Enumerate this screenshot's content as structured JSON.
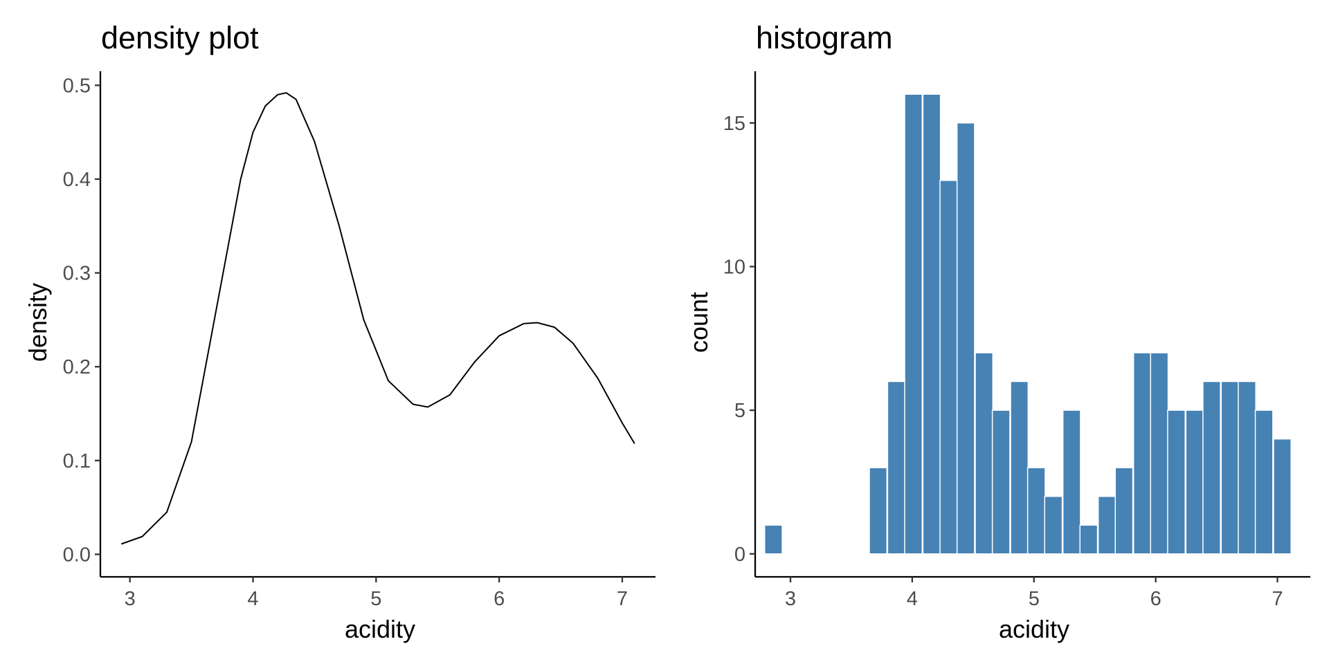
{
  "chart_data": [
    {
      "type": "line",
      "title": "density plot",
      "xlabel": "acidity",
      "ylabel": "density",
      "xlim": [
        2.76,
        7.27
      ],
      "ylim": [
        -0.024,
        0.515
      ],
      "x_ticks": [
        3,
        4,
        5,
        6,
        7
      ],
      "y_ticks": [
        0.0,
        0.1,
        0.2,
        0.3,
        0.4,
        0.5
      ],
      "x_tick_labels": [
        "3",
        "4",
        "5",
        "6",
        "7"
      ],
      "y_tick_labels": [
        "0.0",
        "0.1",
        "0.2",
        "0.3",
        "0.4",
        "0.5"
      ],
      "grid": false,
      "line_color": "#000000",
      "series": [
        {
          "x": [
            2.93,
            3.1,
            3.3,
            3.5,
            3.7,
            3.9,
            4.0,
            4.1,
            4.2,
            4.27,
            4.35,
            4.5,
            4.7,
            4.9,
            5.1,
            5.3,
            5.42,
            5.6,
            5.8,
            6.0,
            6.2,
            6.31,
            6.45,
            6.6,
            6.8,
            7.0,
            7.1
          ],
          "y": [
            0.011,
            0.019,
            0.045,
            0.12,
            0.26,
            0.4,
            0.45,
            0.478,
            0.49,
            0.492,
            0.485,
            0.44,
            0.35,
            0.25,
            0.185,
            0.16,
            0.157,
            0.17,
            0.205,
            0.233,
            0.246,
            0.247,
            0.242,
            0.225,
            0.188,
            0.14,
            0.118
          ]
        }
      ]
    },
    {
      "type": "bar",
      "title": "histogram",
      "xlabel": "acidity",
      "ylabel": "count",
      "xlim": [
        2.71,
        7.27
      ],
      "ylim": [
        -0.8,
        16.8
      ],
      "x_ticks": [
        3,
        4,
        5,
        6,
        7
      ],
      "y_ticks": [
        0,
        5,
        10,
        15
      ],
      "x_tick_labels": [
        "3",
        "4",
        "5",
        "6",
        "7"
      ],
      "y_tick_labels": [
        "0",
        "5",
        "10",
        "15"
      ],
      "grid": false,
      "bar_color": "#4682B4",
      "bin_width": 0.1438,
      "bin_centers": [
        2.86,
        3.0,
        3.15,
        3.29,
        3.43,
        3.58,
        3.72,
        3.87,
        4.01,
        4.16,
        4.3,
        4.44,
        4.59,
        4.73,
        4.88,
        5.02,
        5.16,
        5.31,
        5.45,
        5.6,
        5.74,
        5.89,
        6.03,
        6.17,
        6.32,
        6.46,
        6.61,
        6.75,
        6.89,
        7.04
      ],
      "values": [
        1,
        0,
        0,
        0,
        0,
        0,
        3,
        6,
        16,
        16,
        13,
        15,
        7,
        5,
        6,
        3,
        2,
        5,
        1,
        2,
        3,
        7,
        7,
        5,
        5,
        6,
        6,
        6,
        5,
        4
      ]
    }
  ]
}
